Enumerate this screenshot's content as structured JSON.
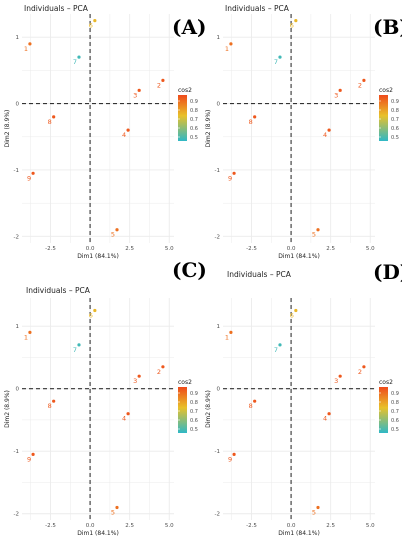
{
  "colors": {
    "gradient_low": "#2fb8c6",
    "gradient_mid": "#e8c12a",
    "gradient_high": "#ef4a1b",
    "grid": "#ebebeb",
    "axis_text": "#4d4d4d"
  },
  "legend_labels": [
    "0.9",
    "0.8",
    "0.7",
    "0.6",
    "0.5"
  ],
  "chart_data": [
    {
      "type": "scatter",
      "panel_label": "(A)",
      "title": "Individuals – PCA",
      "xlabel": "Dim1 (84.1%)",
      "ylabel": "Dim2 (8.9%)",
      "legend_title": "cos2",
      "xlim": [
        -4.3,
        5.3
      ],
      "ylim": [
        -2.1,
        1.35
      ],
      "xticks": [
        -2.5,
        0.0,
        2.5,
        5.0
      ],
      "xtick_labels": [
        "-2.5",
        "0.0",
        "2.5",
        "5.0"
      ],
      "yticks": [
        -2,
        -1,
        0,
        1
      ],
      "ytick_labels": [
        "-2",
        "-1",
        "0",
        "1"
      ],
      "grid": true,
      "legend_position": "right",
      "points": [
        {
          "label": "1",
          "x": -3.8,
          "y": 0.9,
          "cos2": 0.9
        },
        {
          "label": "2",
          "x": 4.6,
          "y": 0.35,
          "cos2": 0.95
        },
        {
          "label": "3",
          "x": 3.1,
          "y": 0.2,
          "cos2": 0.95
        },
        {
          "label": "4",
          "x": 2.4,
          "y": -0.4,
          "cos2": 0.95
        },
        {
          "label": "5",
          "x": 1.7,
          "y": -1.9,
          "cos2": 0.9
        },
        {
          "label": "6",
          "x": 0.3,
          "y": 1.25,
          "cos2": 0.75
        },
        {
          "label": "7",
          "x": -0.7,
          "y": 0.7,
          "cos2": 0.45
        },
        {
          "label": "8",
          "x": -2.3,
          "y": -0.2,
          "cos2": 0.95
        },
        {
          "label": "9",
          "x": -3.6,
          "y": -1.05,
          "cos2": 0.95
        }
      ]
    },
    {
      "type": "scatter",
      "panel_label": "(B)",
      "title": "Individuals – PCA",
      "xlabel": "Dim1 (84.1%)",
      "ylabel": "Dim2 (8.9%)",
      "legend_title": "cos2",
      "xlim": [
        -4.3,
        5.3
      ],
      "ylim": [
        -2.1,
        1.35
      ],
      "xticks": [
        -2.5,
        0.0,
        2.5,
        5.0
      ],
      "xtick_labels": [
        "-2.5",
        "0.0",
        "2.5",
        "5.0"
      ],
      "yticks": [
        -2,
        -1,
        0,
        1
      ],
      "ytick_labels": [
        "-2",
        "-1",
        "0",
        "1"
      ],
      "grid": true,
      "legend_position": "right",
      "points": [
        {
          "label": "1",
          "x": -3.8,
          "y": 0.9,
          "cos2": 0.9
        },
        {
          "label": "2",
          "x": 4.6,
          "y": 0.35,
          "cos2": 0.95
        },
        {
          "label": "3",
          "x": 3.1,
          "y": 0.2,
          "cos2": 0.95
        },
        {
          "label": "4",
          "x": 2.4,
          "y": -0.4,
          "cos2": 0.95
        },
        {
          "label": "5",
          "x": 1.7,
          "y": -1.9,
          "cos2": 0.9
        },
        {
          "label": "6",
          "x": 0.3,
          "y": 1.25,
          "cos2": 0.75
        },
        {
          "label": "7",
          "x": -0.7,
          "y": 0.7,
          "cos2": 0.45
        },
        {
          "label": "8",
          "x": -2.3,
          "y": -0.2,
          "cos2": 0.95
        },
        {
          "label": "9",
          "x": -3.6,
          "y": -1.05,
          "cos2": 0.95
        }
      ]
    },
    {
      "type": "scatter",
      "panel_label": "(C)",
      "title": "Individuals – PCA",
      "xlabel": "Dim1 (84.1%)",
      "ylabel": "Dim2 (8.9%)",
      "legend_title": "cos2",
      "xlim": [
        -4.3,
        5.3
      ],
      "ylim": [
        -2.1,
        1.45
      ],
      "xticks": [
        -2.5,
        0.0,
        2.5,
        5.0
      ],
      "xtick_labels": [
        "-2.5",
        "0.0",
        "2.5",
        "5.0"
      ],
      "yticks": [
        -2,
        -1,
        0,
        1
      ],
      "ytick_labels": [
        "-2",
        "-1",
        "0",
        "1"
      ],
      "grid": true,
      "legend_position": "right",
      "points": [
        {
          "label": "1",
          "x": -3.8,
          "y": 0.9,
          "cos2": 0.9
        },
        {
          "label": "2",
          "x": 4.6,
          "y": 0.35,
          "cos2": 0.95
        },
        {
          "label": "3",
          "x": 3.1,
          "y": 0.2,
          "cos2": 0.95
        },
        {
          "label": "4",
          "x": 2.4,
          "y": -0.4,
          "cos2": 0.95
        },
        {
          "label": "5",
          "x": 1.7,
          "y": -1.9,
          "cos2": 0.9
        },
        {
          "label": "6",
          "x": 0.3,
          "y": 1.25,
          "cos2": 0.75
        },
        {
          "label": "7",
          "x": -0.7,
          "y": 0.7,
          "cos2": 0.45
        },
        {
          "label": "8",
          "x": -2.3,
          "y": -0.2,
          "cos2": 0.95
        },
        {
          "label": "9",
          "x": -3.6,
          "y": -1.05,
          "cos2": 0.95
        }
      ]
    },
    {
      "type": "scatter",
      "panel_label": "(D)",
      "title": "Individuals – PCA",
      "xlabel": "Dim1 (84.1%)",
      "ylabel": "Dim2 (8.9%)",
      "legend_title": "cos2",
      "xlim": [
        -4.3,
        5.3
      ],
      "ylim": [
        -2.1,
        1.45
      ],
      "xticks": [
        -2.5,
        0.0,
        2.5,
        5.0
      ],
      "xtick_labels": [
        "-2.5",
        "0.0",
        "2.5",
        "5.0"
      ],
      "yticks": [
        -2,
        -1,
        0,
        1
      ],
      "ytick_labels": [
        "-2",
        "-1",
        "0",
        "1"
      ],
      "grid": true,
      "legend_position": "right",
      "points": [
        {
          "label": "1",
          "x": -3.8,
          "y": 0.9,
          "cos2": 0.9
        },
        {
          "label": "2",
          "x": 4.6,
          "y": 0.35,
          "cos2": 0.95
        },
        {
          "label": "3",
          "x": 3.1,
          "y": 0.2,
          "cos2": 0.95
        },
        {
          "label": "4",
          "x": 2.4,
          "y": -0.4,
          "cos2": 0.95
        },
        {
          "label": "5",
          "x": 1.7,
          "y": -1.9,
          "cos2": 0.9
        },
        {
          "label": "6",
          "x": 0.3,
          "y": 1.25,
          "cos2": 0.75
        },
        {
          "label": "7",
          "x": -0.7,
          "y": 0.7,
          "cos2": 0.45
        },
        {
          "label": "8",
          "x": -2.3,
          "y": -0.2,
          "cos2": 0.95
        },
        {
          "label": "9",
          "x": -3.6,
          "y": -1.05,
          "cos2": 0.95
        }
      ]
    }
  ]
}
